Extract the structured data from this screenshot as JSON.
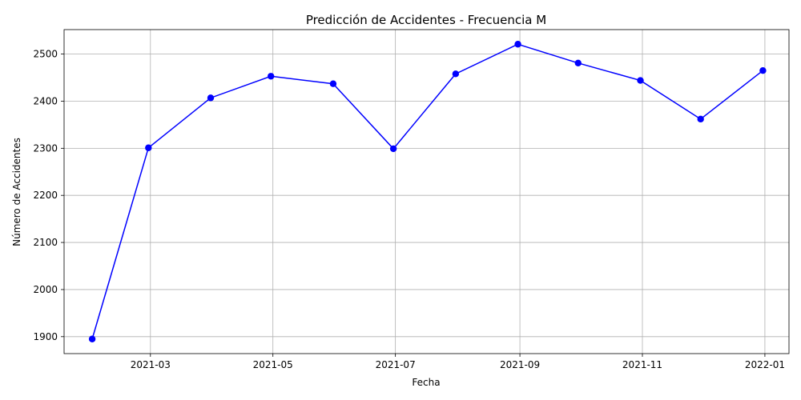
{
  "chart_data": {
    "type": "line",
    "title": "Predicción de Accidentes - Frecuencia M",
    "xlabel": "Fecha",
    "ylabel": "Número de Accidentes",
    "x": [
      "2021-01-31",
      "2021-02-28",
      "2021-03-31",
      "2021-04-30",
      "2021-05-31",
      "2021-06-30",
      "2021-07-31",
      "2021-08-31",
      "2021-09-30",
      "2021-10-31",
      "2021-11-30",
      "2021-12-31"
    ],
    "series": [
      {
        "values": [
          1895,
          2301,
          2407,
          2453,
          2437,
          2299,
          2458,
          2521,
          2481,
          2444,
          2362,
          2465
        ],
        "color": "#0000ff"
      }
    ],
    "x_ticks": [
      "2021-03",
      "2021-05",
      "2021-07",
      "2021-09",
      "2021-11",
      "2022-01"
    ],
    "y_ticks": [
      1900,
      2000,
      2100,
      2200,
      2300,
      2400,
      2500
    ],
    "xlim": [
      "2021-01-17",
      "2022-01-13"
    ],
    "ylim": [
      1864,
      2552
    ],
    "grid": true
  }
}
